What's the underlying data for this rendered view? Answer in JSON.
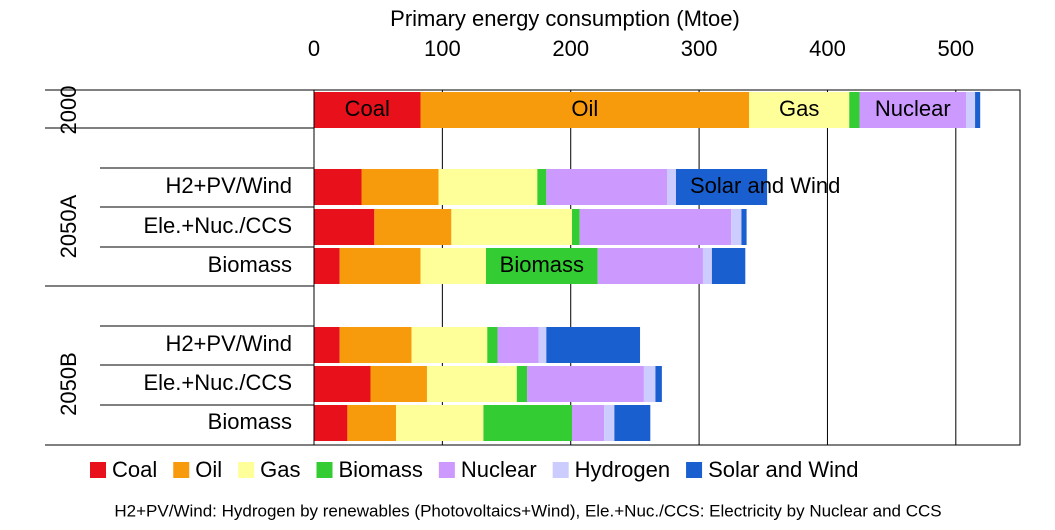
{
  "chart_data": {
    "type": "stacked-barh",
    "title": "Primary energy consumption (Mtoe)",
    "xlim": [
      0,
      550
    ],
    "xticks": [
      0,
      100,
      200,
      300,
      400,
      500
    ],
    "grid": true,
    "categories": [
      null,
      "H2+PV/Wind",
      "Ele.+Nuc./CCS",
      "Biomass",
      "H2+PV/Wind",
      "Ele.+Nuc./CCS",
      "Biomass"
    ],
    "groups": [
      {
        "name": "2000",
        "rows": [
          0
        ]
      },
      {
        "name": "2050A",
        "rows": [
          1,
          2,
          3
        ]
      },
      {
        "name": "2050B",
        "rows": [
          4,
          5,
          6
        ]
      }
    ],
    "series": [
      {
        "name": "Coal",
        "color": "#e8101a",
        "values": [
          83,
          37,
          47,
          20,
          20,
          44,
          26
        ]
      },
      {
        "name": "Oil",
        "color": "#f79a0c",
        "values": [
          256,
          60,
          60,
          63,
          56,
          44,
          38
        ]
      },
      {
        "name": "Gas",
        "color": "#ffff99",
        "values": [
          78,
          77,
          94,
          51,
          59,
          70,
          68
        ]
      },
      {
        "name": "Biomass",
        "color": "#33cc33",
        "values": [
          8,
          7,
          6,
          87,
          8,
          8,
          69
        ]
      },
      {
        "name": "Nuclear",
        "color": "#cc99ff",
        "values": [
          83,
          94,
          118,
          82,
          32,
          91,
          25
        ]
      },
      {
        "name": "Hydrogen",
        "color": "#ccccff",
        "values": [
          7,
          7,
          8,
          7,
          6,
          9,
          8
        ]
      },
      {
        "name": "Solar and Wind",
        "color": "#1a5fd0",
        "values": [
          4,
          71,
          4,
          26,
          73,
          5,
          28
        ]
      }
    ],
    "annotations": [
      {
        "text": "Coal",
        "row": 0,
        "series": 0
      },
      {
        "text": "Oil",
        "row": 0,
        "series": 1
      },
      {
        "text": "Gas",
        "row": 0,
        "series": 2
      },
      {
        "text": "Nuclear",
        "row": 0,
        "series": 4
      },
      {
        "text": "Solar and Wind",
        "row": 1,
        "series": 6
      },
      {
        "text": "Biomass",
        "row": 3,
        "series": 3
      }
    ],
    "footnote": "H2+PV/Wind: Hydrogen by renewables (Photovoltaics+Wind), Ele.+Nuc./CCS: Electricity by Nuclear and CCS"
  }
}
